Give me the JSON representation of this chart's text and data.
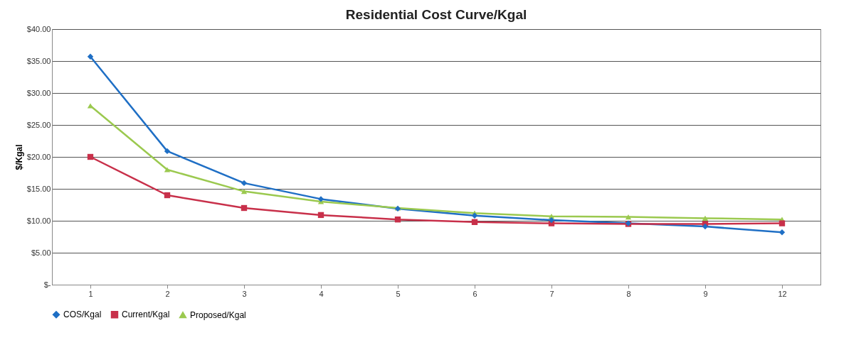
{
  "chart_data": {
    "type": "line",
    "title": "Residential Cost Curve/Kgal",
    "ylabel": "$/Kgal",
    "categories": [
      "1",
      "2",
      "3",
      "4",
      "5",
      "6",
      "7",
      "8",
      "9",
      "12"
    ],
    "series": [
      {
        "name": "COS/Kgal",
        "color": "#1f6fc5",
        "marker": "diamond",
        "values": [
          35.7,
          20.9,
          15.9,
          13.4,
          11.9,
          10.8,
          10.1,
          9.6,
          9.1,
          8.2
        ]
      },
      {
        "name": "Current/Kgal",
        "color": "#c8304a",
        "marker": "square",
        "values": [
          20.0,
          14.0,
          12.0,
          10.9,
          10.2,
          9.8,
          9.6,
          9.5,
          9.5,
          9.6
        ]
      },
      {
        "name": "Proposed/Kgal",
        "color": "#9bc94f",
        "marker": "triangle",
        "values": [
          28.0,
          18.0,
          14.6,
          13.0,
          12.0,
          11.2,
          10.7,
          10.6,
          10.4,
          10.2
        ]
      }
    ],
    "ylim": [
      0,
      40
    ],
    "yticks": [
      {
        "value": 0,
        "label": "$-"
      },
      {
        "value": 5,
        "label": "$5.00"
      },
      {
        "value": 10,
        "label": "$10.00"
      },
      {
        "value": 15,
        "label": "$15.00"
      },
      {
        "value": 20,
        "label": "$20.00"
      },
      {
        "value": 25,
        "label": "$25.00"
      },
      {
        "value": 30,
        "label": "$30.00"
      },
      {
        "value": 35,
        "label": "$35.00"
      },
      {
        "value": 40,
        "label": "$40.00"
      }
    ],
    "grid": "y",
    "legend": "bottom",
    "line_style": "solid"
  }
}
